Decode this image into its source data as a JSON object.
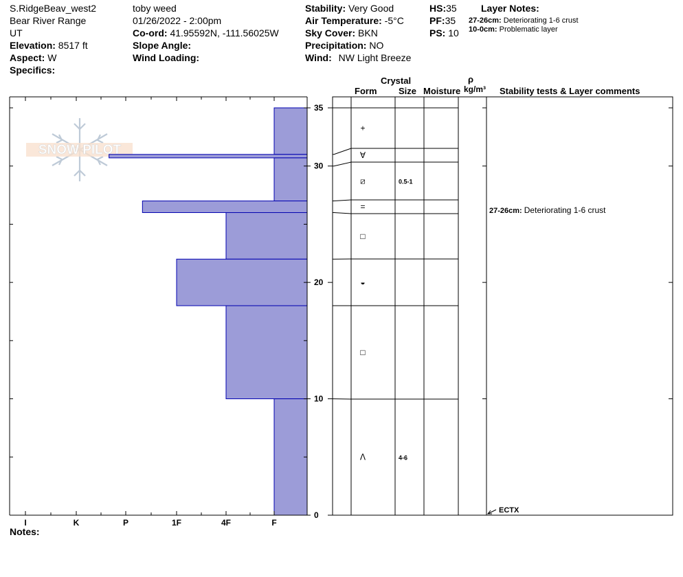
{
  "header": {
    "location": "S.RidgeBeav_west2",
    "range": "Bear River Range",
    "state": "UT",
    "elevation_label": "Elevation:",
    "elevation_value": "8517 ft",
    "aspect_label": "Aspect:",
    "aspect_value": "W",
    "specifics_label": "Specifics:",
    "observer": "toby weed",
    "datetime": "01/26/2022 - 2:00pm",
    "coord_label": "Co-ord:",
    "coord_value": "41.95592N, -111.56025W",
    "slope_label": "Slope Angle:",
    "wind_loading_label": "Wind Loading:",
    "stability_label": "Stability:",
    "stability_value": "Very Good",
    "air_temp_label": "Air Temperature:",
    "air_temp_value": "-5°C",
    "sky_label": "Sky Cover:",
    "sky_value": "BKN",
    "precip_label": "Precipitation:",
    "precip_value": "NO",
    "wind_label": "Wind:",
    "wind_value": "NW Light Breeze",
    "hs_label": "HS:",
    "hs_value": "35",
    "pf_label": "PF:",
    "pf_value": "35",
    "ps_label": "PS:",
    "ps_value": "10",
    "layer_notes_title": "Layer Notes:",
    "layer_notes": [
      {
        "range": "27-26cm:",
        "text": "Deteriorating 1-6 crust"
      },
      {
        "range": "10-0cm:",
        "text": "Problematic layer"
      }
    ],
    "notes_label": "Notes:"
  },
  "logo": {
    "text": "SNOW PILOT"
  },
  "columns": {
    "crystal": "Crystal",
    "form": "Form",
    "size": "Size",
    "moisture": "Moisture",
    "rho": "ρ",
    "density_unit": "kg/m³",
    "stability_comments": "Stability tests & Layer comments"
  },
  "chart_data": {
    "type": "bar",
    "description_type": "snow profile hardness",
    "y_axis": {
      "range": [
        0,
        35
      ],
      "ticks": [
        "0",
        "10",
        "20",
        "30",
        "35"
      ],
      "unit": "cm"
    },
    "x_axis": {
      "categories": [
        "I",
        "K",
        "P",
        "1F",
        "4F",
        "F"
      ]
    },
    "hardness_scale_note": "F is rightmost (softest)",
    "layers": [
      {
        "top": 35,
        "bottom": 31,
        "hardness": "F"
      },
      {
        "top": 31.0,
        "bottom": 30.7,
        "hardness": "P+"
      },
      {
        "top": 30.7,
        "bottom": 27,
        "hardness": "F"
      },
      {
        "top": 27,
        "bottom": 26,
        "hardness": "P-"
      },
      {
        "top": 26,
        "bottom": 22,
        "hardness": "4F"
      },
      {
        "top": 22,
        "bottom": 18,
        "hardness": "1F"
      },
      {
        "top": 18,
        "bottom": 10,
        "hardness": "4F"
      },
      {
        "top": 10,
        "bottom": 0,
        "hardness": "F"
      }
    ],
    "grain_layers": [
      {
        "top": 35,
        "bottom": 31,
        "form": "+",
        "size": ""
      },
      {
        "top": 31,
        "bottom": 30,
        "form": "∀",
        "size": ""
      },
      {
        "top": 30,
        "bottom": 27,
        "form": "⧄",
        "size": "0.5-1"
      },
      {
        "top": 27,
        "bottom": 26,
        "form": "=",
        "size": ""
      },
      {
        "top": 26,
        "bottom": 22,
        "form": "□",
        "size": ""
      },
      {
        "top": 22,
        "bottom": 18,
        "form": "◒",
        "size": ""
      },
      {
        "top": 18,
        "bottom": 10,
        "form": "□",
        "size": ""
      },
      {
        "top": 10,
        "bottom": 0,
        "form": "ᐱ",
        "size": "4-6"
      }
    ],
    "layer_comments": [
      {
        "depth": 26.5,
        "range": "27-26cm:",
        "text": "Deteriorating 1-6 crust"
      }
    ],
    "tests": [
      {
        "depth": 0,
        "label": "ECTX"
      }
    ],
    "fill_color": "#9c9cd8",
    "stroke_color": "#0000b0"
  }
}
